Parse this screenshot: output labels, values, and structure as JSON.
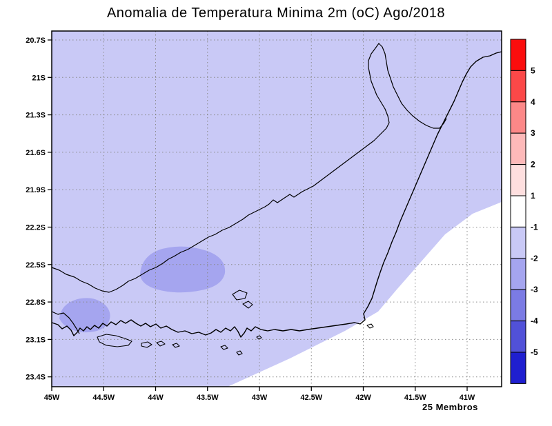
{
  "title": "Anomalia de Temperatura Minima 2m (oC) Ago/2018",
  "caption": "25 Membros",
  "axes": {
    "x_ticks": [
      "45W",
      "44.5W",
      "44W",
      "43.5W",
      "43W",
      "42.5W",
      "42W",
      "41.5W",
      "41W"
    ],
    "y_ticks": [
      "20.7S",
      "21S",
      "21.3S",
      "21.6S",
      "21.9S",
      "22.2S",
      "22.5S",
      "22.8S",
      "23.1S",
      "23.4S"
    ]
  },
  "colorbar": {
    "labels": [
      "5",
      "4",
      "3",
      "2",
      "1",
      "-1",
      "-2",
      "-3",
      "-4",
      "-5"
    ],
    "colors_top_to_bottom": [
      "#fb0d0d",
      "#fb4848",
      "#fc8888",
      "#fdb9b9",
      "#fedfdf",
      "#ffffff",
      "#c9c9f6",
      "#a5a5ef",
      "#7b7be4",
      "#5151d8",
      "#1f1fd0"
    ]
  },
  "map_colors": {
    "fill_main": "#c9c9f6",
    "fill_dark_patch": "#a5a5ef",
    "ocean_white": "#ffffff",
    "contour": "#000000",
    "grid": "#8a8a8a"
  },
  "chart_data": {
    "type": "heatmap",
    "title": "Anomalia de Temperatura Minima 2m (oC) Ago/2018",
    "annotation": "25 Membros",
    "xlabel": "",
    "ylabel": "",
    "x_ticks": [
      "45W",
      "44.5W",
      "44W",
      "43.5W",
      "43W",
      "42.5W",
      "42W",
      "41.5W",
      "41W"
    ],
    "y_ticks": [
      "20.7S",
      "21S",
      "21.3S",
      "21.6S",
      "21.9S",
      "22.2S",
      "22.5S",
      "22.8S",
      "23.1S",
      "23.4S"
    ],
    "x_range": [
      "45W",
      "40.7W"
    ],
    "y_range": [
      "20.6S",
      "23.5S"
    ],
    "colorbar_levels": [
      5,
      4,
      3,
      2,
      1,
      -1,
      -2,
      -3,
      -4,
      -5
    ],
    "colorbar_units": "oC",
    "grid": true,
    "legend_position": "right-colorbar",
    "regions": [
      {
        "value_range": [
          -2,
          -1
        ],
        "extent": "dominant shading covering nearly all of the mapped area (Rio de Janeiro state and surroundings)"
      },
      {
        "value_range": [
          -3,
          -2
        ],
        "extent": "oval patch centered near 43.7W, 22.55S"
      },
      {
        "value_range": [
          -3,
          -2
        ],
        "extent": "small patch centered near 44.7W, 22.9S"
      },
      {
        "value_range": [
          -1,
          1
        ],
        "extent": "white offshore wedge in the southeast corner of the map"
      }
    ]
  }
}
